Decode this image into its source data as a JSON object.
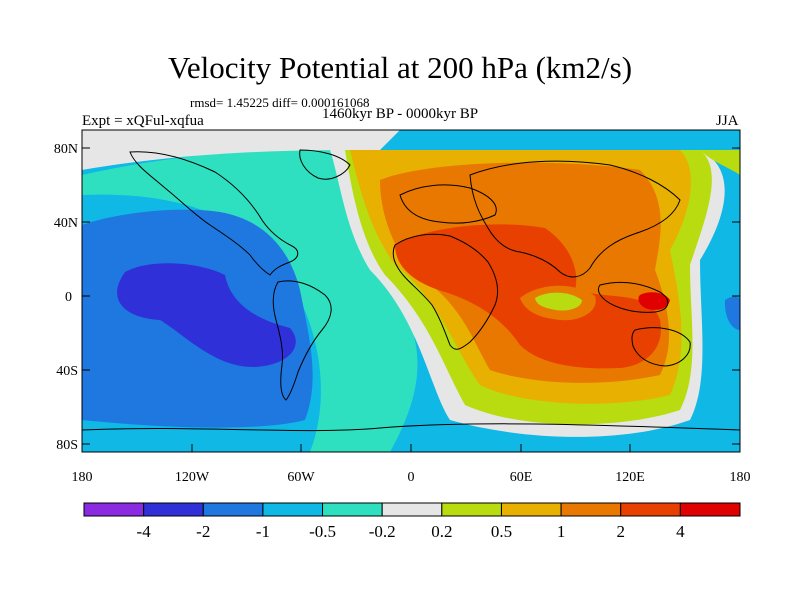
{
  "title": "Velocity Potential at 200 hPa (km2/s)",
  "stats": "rmsd= 1.45225 diff= 0.000161068",
  "period": "1460kyr BP - 0000kyr BP",
  "experiment": "Expt = xQFul-xqfua",
  "season": "JJA",
  "lat_ticks": [
    "80N",
    "40N",
    "0",
    "40S",
    "80S"
  ],
  "lon_ticks": [
    "180",
    "120W",
    "60W",
    "0",
    "60E",
    "120E",
    "180"
  ],
  "colorbar": {
    "colors": [
      "#8a2be2",
      "#3030d8",
      "#1e78e0",
      "#10b8e6",
      "#2ee0c0",
      "#e6e6e6",
      "#b8dc10",
      "#e8b000",
      "#e87800",
      "#e84000",
      "#e00000"
    ],
    "labels": [
      "-4",
      "-2",
      "-1",
      "-0.5",
      "-0.2",
      "0.2",
      "0.5",
      "1",
      "2",
      "4"
    ]
  }
}
